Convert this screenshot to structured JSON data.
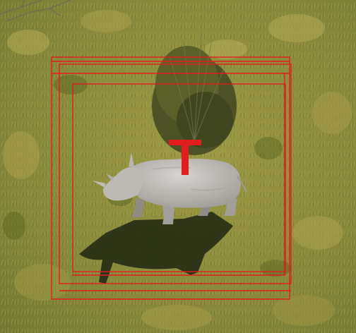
{
  "scene": {
    "subject": "rhinoceros-icon",
    "marker_letter": "T",
    "colors": {
      "grass_light": "#a9a24a",
      "grass_mid": "#8a8a3a",
      "grass_dark": "#5f6a26",
      "bush": "#4a4f24",
      "shadow": "#1e2310",
      "rhino_body": "#c9c7c3",
      "rhino_shade": "#9c9893",
      "overlay_red": "#e21d1d"
    }
  }
}
